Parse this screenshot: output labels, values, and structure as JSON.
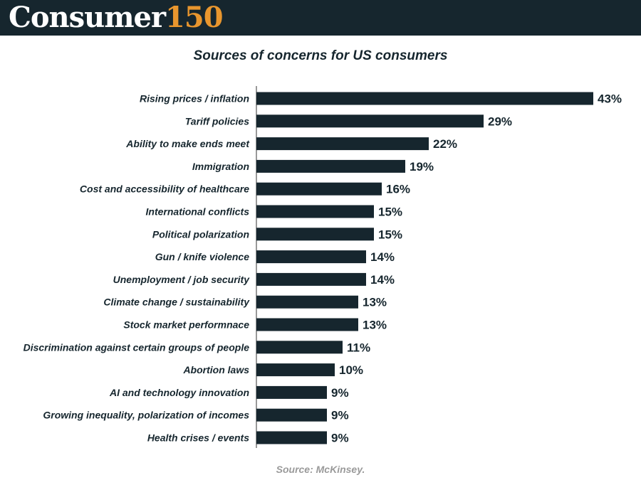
{
  "brand": {
    "logo_word": "Consumer",
    "logo_number": "150",
    "header_color": "#16262e",
    "accent_color": "#e8962e"
  },
  "chart_data": {
    "type": "bar",
    "orientation": "horizontal",
    "title": "Sources of concerns for US consumers",
    "categories": [
      "Rising prices / inflation",
      "Tariff policies",
      "Ability to make ends meet",
      "Immigration",
      "Cost and accessibility of healthcare",
      "International conflicts",
      "Political polarization",
      "Gun / knife violence",
      "Unemployment / job security",
      "Climate change / sustainability",
      "Stock market performnace",
      "Discrimination against certain groups of people",
      "Abortion laws",
      "AI and technology innovation",
      "Growing inequality, polarization of incomes",
      "Health crises / events"
    ],
    "values": [
      43,
      29,
      22,
      19,
      16,
      15,
      15,
      14,
      14,
      13,
      13,
      11,
      10,
      9,
      9,
      9
    ],
    "value_labels": [
      "43%",
      "29%",
      "22%",
      "19%",
      "16%",
      "15%",
      "15%",
      "14%",
      "14%",
      "13%",
      "13%",
      "11%",
      "10%",
      "9%",
      "9%",
      "9%"
    ],
    "unit": "%",
    "xlim": [
      0,
      43
    ],
    "bar_color": "#16262e",
    "grid": false,
    "legend": "none",
    "source": "Source: McKinsey."
  }
}
